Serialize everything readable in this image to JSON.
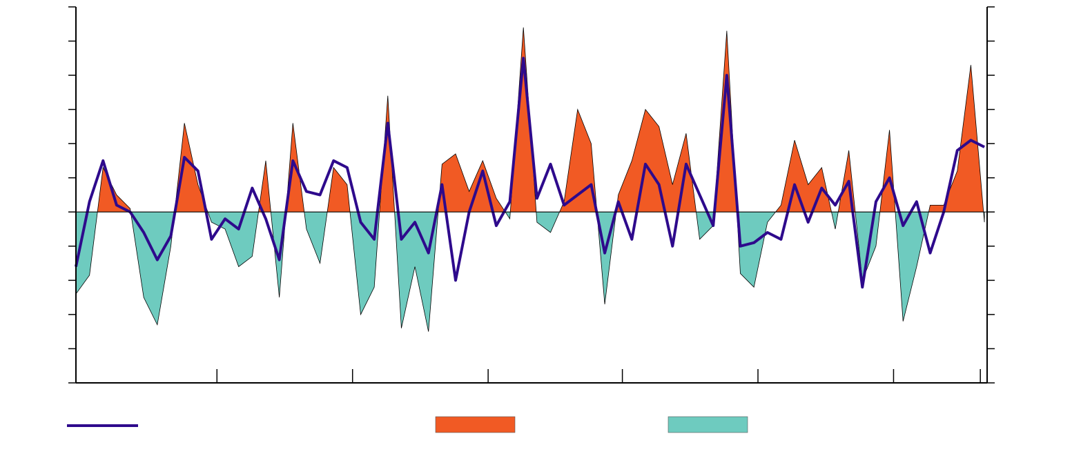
{
  "chart_data": {
    "type": "area",
    "xlim": [
      0,
      6.72
    ],
    "xticks": [
      1.04,
      2.04,
      3.04,
      4.03,
      5.03,
      6.03,
      6.67
    ],
    "ylim": [
      -5,
      6
    ],
    "yticks": [
      -5,
      -4,
      -3,
      -2,
      -1,
      0,
      1,
      2,
      3,
      4,
      5,
      6
    ],
    "x": [
      0,
      0.1,
      0.2,
      0.3,
      0.4,
      0.5,
      0.6,
      0.7,
      0.8,
      0.9,
      1,
      1.1,
      1.2,
      1.3,
      1.4,
      1.5,
      1.6,
      1.7,
      1.8,
      1.9,
      2,
      2.1,
      2.2,
      2.3,
      2.4,
      2.5,
      2.6,
      2.7,
      2.8,
      2.9,
      3,
      3.1,
      3.2,
      3.3,
      3.4,
      3.5,
      3.6,
      3.7,
      3.8,
      3.9,
      4,
      4.1,
      4.2,
      4.3,
      4.4,
      4.5,
      4.6,
      4.7,
      4.8,
      4.9,
      5,
      5.1,
      5.2,
      5.3,
      5.4,
      5.5,
      5.6,
      5.7,
      5.8,
      5.9,
      6,
      6.1,
      6.2,
      6.3,
      6.4,
      6.5,
      6.6,
      6.7
    ],
    "series": [
      {
        "type": "area",
        "color_positive": "#f15a24",
        "color_negative": "#6ecbbf",
        "values": [
          -2.4,
          -1.85,
          1.3,
          0.5,
          0.1,
          -2.5,
          -3.3,
          -1.0,
          2.6,
          0.8,
          -0.3,
          -0.5,
          -1.6,
          -1.3,
          1.5,
          -2.5,
          2.6,
          -0.5,
          -1.5,
          1.3,
          0.8,
          -3.0,
          -2.2,
          3.4,
          -3.4,
          -1.6,
          -3.5,
          1.4,
          1.7,
          0.6,
          1.5,
          0.4,
          -0.2,
          5.4,
          -0.3,
          -0.6,
          0.3,
          3.0,
          2.0,
          -2.7,
          0.5,
          1.5,
          3.0,
          2.5,
          0.8,
          2.3,
          -0.8,
          -0.4,
          5.3,
          -1.8,
          -2.2,
          -0.3,
          0.2,
          2.1,
          0.8,
          1.3,
          -0.5,
          1.8,
          -2.0,
          -1.0,
          2.4,
          -3.2,
          -1.6,
          0.2,
          0.2,
          1.2,
          4.3,
          -0.3
        ]
      },
      {
        "type": "line",
        "color": "#2e0a8c",
        "values": [
          -1.6,
          0.3,
          1.5,
          0.2,
          0.0,
          -0.6,
          -1.4,
          -0.7,
          1.6,
          1.2,
          -0.8,
          -0.2,
          -0.5,
          0.7,
          -0.2,
          -1.4,
          1.5,
          0.6,
          0.5,
          1.5,
          1.3,
          -0.3,
          -0.8,
          2.6,
          -0.8,
          -0.3,
          -1.2,
          0.8,
          -2.0,
          0.0,
          1.2,
          -0.4,
          0.3,
          4.5,
          0.4,
          1.4,
          0.2,
          0.5,
          0.8,
          -1.2,
          0.3,
          -0.8,
          1.4,
          0.8,
          -1.0,
          1.4,
          0.5,
          -0.4,
          4.0,
          -1.0,
          -0.9,
          -0.6,
          -0.8,
          0.8,
          -0.3,
          0.7,
          0.2,
          0.9,
          -2.2,
          0.3,
          1.0,
          -0.4,
          0.3,
          -1.2,
          0.0,
          1.8,
          2.1,
          1.9
        ]
      }
    ]
  }
}
